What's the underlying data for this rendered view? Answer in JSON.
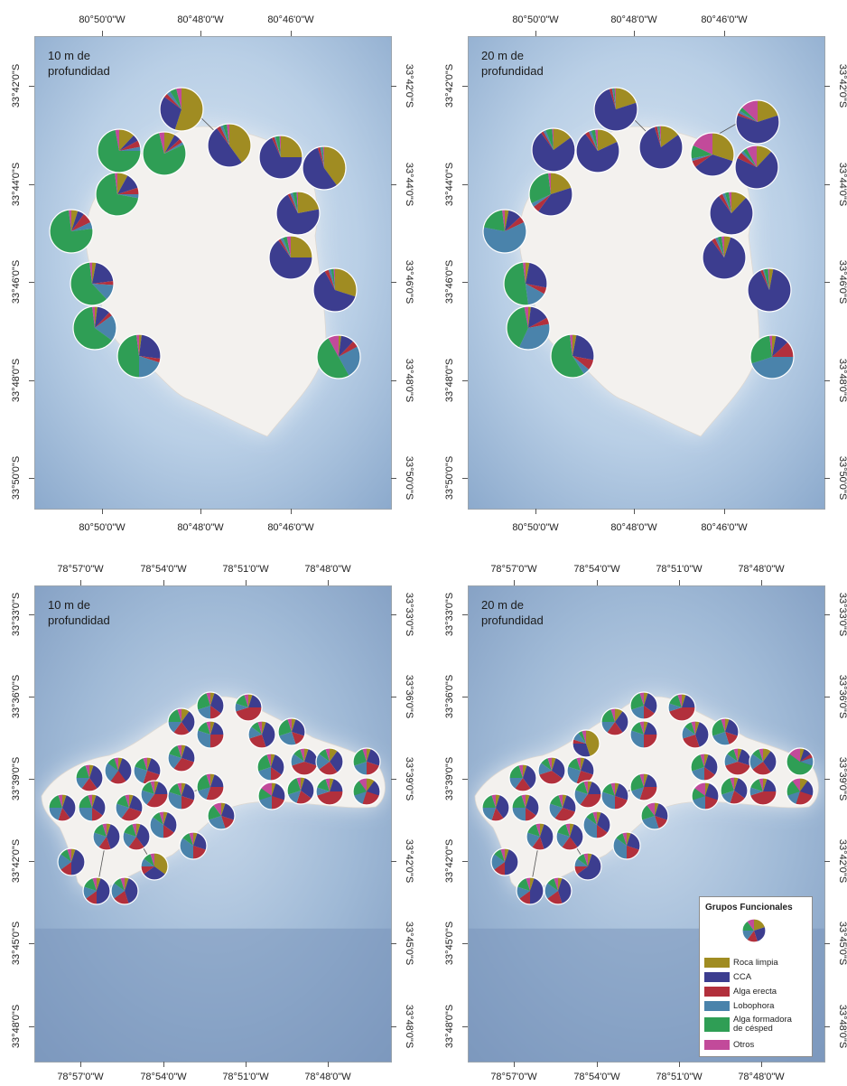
{
  "legend": {
    "title": "Grupos Funcionales",
    "items": [
      {
        "label": "Roca limpia",
        "color": "#a08c22"
      },
      {
        "label": "CCA",
        "color": "#3c3d8f"
      },
      {
        "label": "Alga erecta",
        "color": "#b2303c"
      },
      {
        "label": "Lobophora",
        "color": "#4a83ab"
      },
      {
        "label": "Alga formadora\nde césped",
        "color": "#2f9e55"
      },
      {
        "label": "Otros",
        "color": "#c24a9a"
      }
    ]
  },
  "panels": [
    {
      "id": "a",
      "label": "10 m de\nprofundidad",
      "lon_labels": [
        "80°50'0\"W",
        "80°48'0\"W",
        "80°46'0\"W"
      ],
      "lat_labels": [
        "33°42'0\"S",
        "33°44'0\"S",
        "33°46'0\"S",
        "33°48'0\"S",
        "33°50'0\"S"
      ],
      "pies": [
        {
          "v": [
            55,
            30,
            3,
            3,
            5,
            4
          ]
        },
        {
          "v": [
            40,
            50,
            3,
            2,
            3,
            2
          ]
        },
        {
          "v": [
            12,
            5,
            5,
            3,
            72,
            3
          ]
        },
        {
          "v": [
            8,
            5,
            3,
            2,
            78,
            4
          ]
        },
        {
          "v": [
            25,
            68,
            2,
            1,
            3,
            1
          ]
        },
        {
          "v": [
            40,
            55,
            2,
            1,
            1,
            1
          ]
        },
        {
          "v": [
            8,
            12,
            5,
            3,
            70,
            2
          ]
        },
        {
          "v": [
            22,
            70,
            2,
            2,
            3,
            1
          ]
        },
        {
          "v": [
            5,
            5,
            8,
            5,
            75,
            2
          ]
        },
        {
          "v": [
            25,
            65,
            2,
            2,
            3,
            3
          ]
        },
        {
          "v": [
            3,
            20,
            3,
            12,
            60,
            2
          ]
        },
        {
          "v": [
            30,
            62,
            3,
            2,
            2,
            1
          ]
        },
        {
          "v": [
            2,
            10,
            3,
            20,
            63,
            2
          ]
        },
        {
          "v": [
            2,
            25,
            3,
            20,
            48,
            2
          ]
        },
        {
          "v": [
            2,
            10,
            5,
            25,
            50,
            8
          ]
        }
      ]
    },
    {
      "id": "b",
      "label": "20 m de\nprofundidad",
      "lon_labels": [
        "80°50'0\"W",
        "80°48'0\"W",
        "80°46'0\"W"
      ],
      "lat_labels": [
        "33°42'0\"S",
        "33°44'0\"S",
        "33°46'0\"S",
        "33°48'0\"S",
        "33°50'0\"S"
      ],
      "pies": [
        {
          "v": [
            20,
            75,
            2,
            1,
            1,
            1
          ]
        },
        {
          "v": [
            20,
            60,
            2,
            2,
            3,
            13
          ]
        },
        {
          "v": [
            15,
            75,
            2,
            2,
            5,
            1
          ]
        },
        {
          "v": [
            18,
            72,
            3,
            2,
            3,
            2
          ]
        },
        {
          "v": [
            15,
            80,
            2,
            1,
            1,
            1
          ]
        },
        {
          "v": [
            30,
            35,
            5,
            2,
            10,
            18
          ]
        },
        {
          "v": [
            12,
            70,
            5,
            2,
            3,
            8
          ]
        },
        {
          "v": [
            20,
            40,
            5,
            3,
            30,
            2
          ]
        },
        {
          "v": [
            12,
            78,
            3,
            2,
            3,
            2
          ]
        },
        {
          "v": [
            3,
            10,
            5,
            60,
            20,
            2
          ]
        },
        {
          "v": [
            5,
            85,
            3,
            2,
            3,
            2
          ]
        },
        {
          "v": [
            3,
            25,
            5,
            15,
            50,
            2
          ]
        },
        {
          "v": [
            3,
            90,
            2,
            1,
            3,
            1
          ]
        },
        {
          "v": [
            2,
            15,
            5,
            35,
            40,
            3
          ]
        },
        {
          "v": [
            3,
            25,
            8,
            5,
            57,
            2
          ]
        },
        {
          "v": [
            3,
            10,
            12,
            45,
            28,
            2
          ]
        }
      ]
    },
    {
      "id": "c",
      "label": "10 m de\nprofundidad",
      "lon_labels": [
        "78°57'0\"W",
        "78°54'0\"W",
        "78°51'0\"W",
        "78°48'0\"W"
      ],
      "lat_labels": [
        "33°33'0\"S",
        "33°36'0\"S",
        "33°39'0\"S",
        "33°42'0\"S",
        "33°45'0\"S",
        "33°48'0\"S"
      ],
      "pies": [
        {
          "v": [
            5,
            30,
            15,
            20,
            25,
            5
          ]
        },
        {
          "v": [
            5,
            20,
            45,
            10,
            15,
            5
          ]
        },
        {
          "v": [
            10,
            30,
            20,
            15,
            20,
            5
          ]
        },
        {
          "v": [
            5,
            40,
            25,
            15,
            10,
            5
          ]
        },
        {
          "v": [
            5,
            25,
            15,
            25,
            25,
            5
          ]
        },
        {
          "v": [
            5,
            20,
            25,
            30,
            15,
            5
          ]
        },
        {
          "v": [
            5,
            25,
            30,
            20,
            15,
            5
          ]
        },
        {
          "v": [
            5,
            30,
            35,
            15,
            10,
            5
          ]
        },
        {
          "v": [
            5,
            35,
            20,
            15,
            20,
            5
          ]
        },
        {
          "v": [
            5,
            25,
            25,
            25,
            15,
            5
          ]
        },
        {
          "v": [
            5,
            30,
            15,
            20,
            25,
            5
          ]
        },
        {
          "v": [
            5,
            25,
            40,
            15,
            10,
            5
          ]
        },
        {
          "v": [
            10,
            30,
            25,
            20,
            10,
            5
          ]
        },
        {
          "v": [
            5,
            25,
            20,
            20,
            25,
            5
          ]
        },
        {
          "v": [
            5,
            20,
            30,
            15,
            25,
            5
          ]
        },
        {
          "v": [
            5,
            25,
            15,
            25,
            20,
            10
          ]
        },
        {
          "v": [
            5,
            20,
            10,
            15,
            45,
            5
          ]
        },
        {
          "v": [
            5,
            30,
            20,
            15,
            25,
            5
          ]
        },
        {
          "v": [
            5,
            20,
            45,
            10,
            15,
            5
          ]
        },
        {
          "v": [
            5,
            35,
            20,
            15,
            20,
            5
          ]
        },
        {
          "v": [
            5,
            25,
            20,
            30,
            15,
            5
          ]
        },
        {
          "v": [
            5,
            35,
            15,
            20,
            20,
            5
          ]
        },
        {
          "v": [
            5,
            30,
            15,
            25,
            20,
            5
          ]
        },
        {
          "v": [
            5,
            25,
            30,
            20,
            15,
            5
          ]
        },
        {
          "v": [
            5,
            30,
            15,
            35,
            10,
            5
          ]
        },
        {
          "v": [
            5,
            40,
            15,
            20,
            15,
            5
          ]
        },
        {
          "v": [
            5,
            35,
            20,
            20,
            15,
            5
          ]
        },
        {
          "v": [
            5,
            25,
            20,
            35,
            10,
            5
          ]
        },
        {
          "v": [
            5,
            45,
            15,
            20,
            10,
            5
          ]
        },
        {
          "v": [
            35,
            30,
            10,
            10,
            10,
            5
          ]
        },
        {
          "v": [
            5,
            45,
            15,
            15,
            15,
            5
          ]
        },
        {
          "v": [
            5,
            40,
            20,
            20,
            10,
            5
          ]
        },
        {
          "v": [
            5,
            35,
            20,
            25,
            10,
            5
          ]
        },
        {
          "v": [
            5,
            20,
            35,
            20,
            15,
            5
          ]
        },
        {
          "v": [
            5,
            25,
            20,
            20,
            15,
            15
          ]
        },
        {
          "v": [
            10,
            20,
            25,
            15,
            20,
            10
          ]
        }
      ]
    },
    {
      "id": "d",
      "label": "20 m de\nprofundidad",
      "lon_labels": [
        "78°57'0\"W",
        "78°54'0\"W",
        "78°51'0\"W",
        "78°48'0\"W"
      ],
      "lat_labels": [
        "33°33'0\"S",
        "33°36'0\"S",
        "33°39'0\"S",
        "33°42'0\"S",
        "33°45'0\"S",
        "33°48'0\"S"
      ],
      "pies": [
        {
          "v": [
            5,
            30,
            15,
            20,
            25,
            5
          ]
        },
        {
          "v": [
            5,
            20,
            45,
            10,
            15,
            5
          ]
        },
        {
          "v": [
            10,
            30,
            20,
            15,
            20,
            5
          ]
        },
        {
          "v": [
            5,
            40,
            25,
            15,
            10,
            5
          ]
        },
        {
          "v": [
            5,
            25,
            15,
            25,
            25,
            5
          ]
        },
        {
          "v": [
            5,
            20,
            25,
            30,
            15,
            5
          ]
        },
        {
          "v": [
            45,
            30,
            5,
            10,
            5,
            5
          ]
        },
        {
          "v": [
            5,
            30,
            35,
            15,
            10,
            5
          ]
        },
        {
          "v": [
            5,
            35,
            20,
            15,
            20,
            5
          ]
        },
        {
          "v": [
            5,
            25,
            25,
            25,
            15,
            5
          ]
        },
        {
          "v": [
            5,
            30,
            15,
            20,
            25,
            5
          ]
        },
        {
          "v": [
            5,
            25,
            40,
            15,
            10,
            5
          ]
        },
        {
          "v": [
            10,
            30,
            25,
            20,
            10,
            5
          ]
        },
        {
          "v": [
            15,
            25,
            10,
            15,
            10,
            25
          ]
        },
        {
          "v": [
            5,
            20,
            30,
            15,
            25,
            5
          ]
        },
        {
          "v": [
            5,
            25,
            15,
            25,
            20,
            10
          ]
        },
        {
          "v": [
            5,
            20,
            10,
            15,
            35,
            15
          ]
        },
        {
          "v": [
            5,
            30,
            20,
            15,
            25,
            5
          ]
        },
        {
          "v": [
            5,
            20,
            45,
            10,
            15,
            5
          ]
        },
        {
          "v": [
            5,
            35,
            20,
            15,
            20,
            5
          ]
        },
        {
          "v": [
            5,
            25,
            20,
            30,
            15,
            5
          ]
        },
        {
          "v": [
            5,
            35,
            15,
            20,
            20,
            5
          ]
        },
        {
          "v": [
            5,
            30,
            15,
            25,
            20,
            5
          ]
        },
        {
          "v": [
            5,
            25,
            30,
            20,
            15,
            5
          ]
        },
        {
          "v": [
            5,
            30,
            15,
            35,
            10,
            5
          ]
        },
        {
          "v": [
            5,
            40,
            15,
            20,
            15,
            5
          ]
        },
        {
          "v": [
            5,
            35,
            20,
            20,
            15,
            5
          ]
        },
        {
          "v": [
            5,
            25,
            20,
            35,
            10,
            5
          ]
        },
        {
          "v": [
            5,
            45,
            15,
            20,
            10,
            5
          ]
        },
        {
          "v": [
            5,
            60,
            10,
            10,
            10,
            5
          ]
        },
        {
          "v": [
            5,
            45,
            15,
            15,
            15,
            5
          ]
        },
        {
          "v": [
            5,
            40,
            20,
            20,
            10,
            5
          ]
        },
        {
          "v": [
            5,
            10,
            5,
            10,
            55,
            15
          ]
        },
        {
          "v": [
            5,
            20,
            35,
            20,
            15,
            5
          ]
        },
        {
          "v": [
            5,
            25,
            20,
            20,
            15,
            15
          ]
        },
        {
          "v": [
            10,
            20,
            25,
            15,
            20,
            10
          ]
        }
      ]
    }
  ]
}
